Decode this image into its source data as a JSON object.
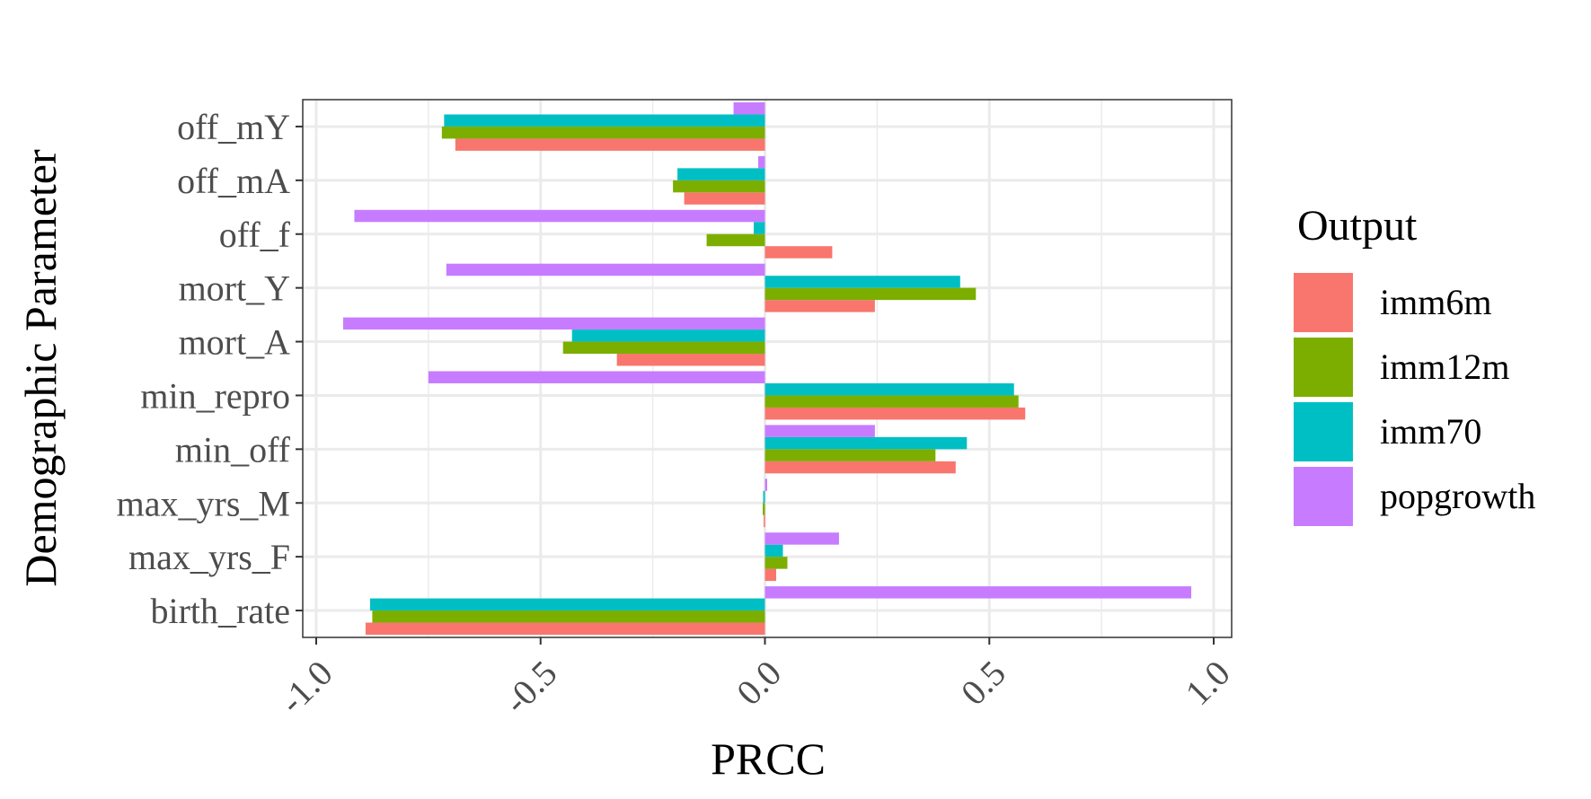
{
  "chart_data": {
    "type": "bar",
    "orientation": "horizontal",
    "xlabel": "PRCC",
    "ylabel": "Demographic Parameter",
    "xlim": [
      -1.03,
      1.04
    ],
    "xticks": [
      -1.0,
      -0.5,
      0.0,
      0.5,
      1.0
    ],
    "xtick_labels": [
      "-1.0",
      "-0.5",
      "0.0",
      "0.5",
      "1.0"
    ],
    "categories": [
      "off_mY",
      "off_mA",
      "off_f",
      "mort_Y",
      "mort_A",
      "min_repro",
      "min_off",
      "max_yrs_M",
      "max_yrs_F",
      "birth_rate"
    ],
    "series": [
      {
        "name": "imm6m",
        "color": "#F8766D",
        "values": [
          -0.69,
          -0.18,
          0.15,
          0.245,
          -0.33,
          0.58,
          0.425,
          -0.003,
          0.025,
          -0.89
        ]
      },
      {
        "name": "imm12m",
        "color": "#7CAE00",
        "values": [
          -0.72,
          -0.205,
          -0.13,
          0.47,
          -0.45,
          0.565,
          0.38,
          -0.005,
          0.05,
          -0.875
        ]
      },
      {
        "name": "imm70",
        "color": "#00BFC4",
        "values": [
          -0.715,
          -0.195,
          -0.025,
          0.435,
          -0.43,
          0.555,
          0.45,
          -0.004,
          0.04,
          -0.88
        ]
      },
      {
        "name": "popgrowth",
        "color": "#C77CFF",
        "values": [
          -0.07,
          -0.015,
          -0.915,
          -0.71,
          -0.94,
          -0.75,
          0.245,
          0.005,
          0.165,
          0.95
        ]
      }
    ],
    "legend": {
      "title": "Output",
      "position": "right"
    },
    "grid": true
  }
}
